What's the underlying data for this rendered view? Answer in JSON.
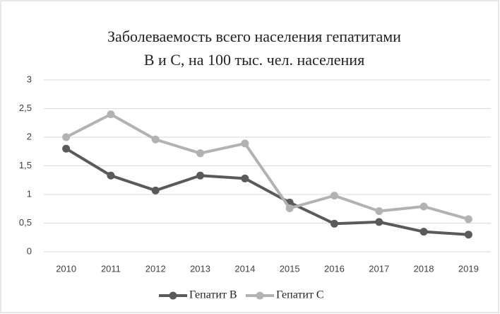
{
  "chart_data": {
    "type": "line",
    "title": [
      "Заболеваемость всего населения гепатитами",
      "В и С, на 100 тыс. чел. населения"
    ],
    "categories": [
      "2010",
      "2011",
      "2012",
      "2013",
      "2014",
      "2015",
      "2016",
      "2017",
      "2018",
      "2019"
    ],
    "series": [
      {
        "name": "Гепатит В",
        "color": "#5a5a5a",
        "values": [
          1.8,
          1.33,
          1.07,
          1.33,
          1.28,
          0.86,
          0.49,
          0.52,
          0.35,
          0.3
        ]
      },
      {
        "name": "Гепатит С",
        "color": "#b2b2b2",
        "values": [
          2.0,
          2.4,
          1.96,
          1.72,
          1.89,
          0.76,
          0.98,
          0.71,
          0.79,
          0.57
        ]
      }
    ],
    "ylim": [
      0,
      3
    ],
    "yticks": [
      0,
      {
        "value": 0.5,
        "label": "0,5"
      },
      1,
      {
        "value": 1.5,
        "label": "1,5"
      },
      2,
      {
        "value": 2.5,
        "label": "2,5"
      },
      3
    ],
    "grid": true,
    "legend": "bottom"
  }
}
